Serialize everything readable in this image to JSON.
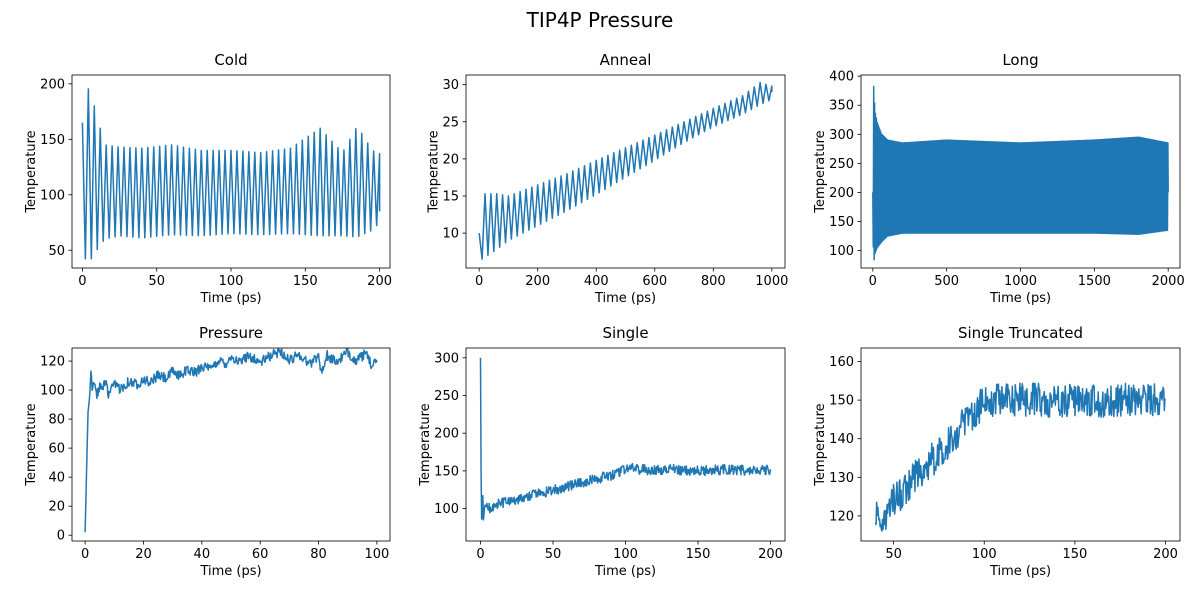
{
  "figure": {
    "suptitle": "TIP4P Pressure"
  },
  "colors": {
    "series": "#1f77b4"
  },
  "chart_data": [
    {
      "type": "line",
      "title": "Cold",
      "xlabel": "Time (ps)",
      "ylabel": "Temperature",
      "xlim": [
        -7,
        207
      ],
      "ylim": [
        34,
        208
      ],
      "xticks": [
        0,
        50,
        100,
        150,
        200
      ],
      "yticks": [
        50,
        100,
        150,
        200
      ],
      "series": [
        {
          "x_start": 0,
          "x_end": 200,
          "period": 4,
          "envelope_x": [
            0,
            3,
            5,
            8,
            15,
            25,
            40,
            60,
            80,
            100,
            120,
            140,
            160,
            175,
            185,
            195,
            200
          ],
          "envelope_upper": [
            165,
            190,
            201,
            180,
            145,
            143,
            142,
            145,
            140,
            140,
            138,
            142,
            160,
            138,
            162,
            140,
            137
          ],
          "envelope_lower": [
            45,
            41,
            40,
            47,
            60,
            63,
            61,
            64,
            63,
            65,
            64,
            65,
            63,
            63,
            62,
            68,
            75
          ],
          "center_end": 85
        }
      ]
    },
    {
      "type": "line",
      "title": "Anneal",
      "xlabel": "Time (ps)",
      "ylabel": "Temperature",
      "xlim": [
        -45,
        1045
      ],
      "ylim": [
        5.3,
        31.3
      ],
      "xticks": [
        0,
        200,
        400,
        600,
        800,
        1000
      ],
      "yticks": [
        10,
        15,
        20,
        25,
        30
      ],
      "series": [
        {
          "x_start": 0,
          "x_end": 1000,
          "period": 20,
          "envelope_x": [
            0,
            10,
            30,
            60,
            100,
            200,
            300,
            400,
            500,
            600,
            700,
            800,
            900,
            960,
            1000
          ],
          "envelope_upper": [
            10,
            15.3,
            15.3,
            15.3,
            15.0,
            16.5,
            18.0,
            19.8,
            21.5,
            23.2,
            25.0,
            26.8,
            28.5,
            30.3,
            29.8
          ],
          "envelope_lower": [
            6.5,
            6.5,
            7.0,
            7.8,
            9.0,
            11.0,
            13.0,
            15.2,
            17.5,
            19.8,
            22.2,
            24.3,
            26.0,
            27.3,
            28.0
          ],
          "center_end": 29
        }
      ]
    },
    {
      "type": "line",
      "title": "Long",
      "xlabel": "Time (ps)",
      "ylabel": "Temperature",
      "xlim": [
        -80,
        2080
      ],
      "ylim": [
        70,
        402
      ],
      "xticks": [
        0,
        500,
        1000,
        1500,
        2000
      ],
      "yticks": [
        100,
        150,
        200,
        250,
        300,
        350,
        400
      ],
      "series": [
        {
          "x_start": 0,
          "x_end": 2000,
          "period": 6,
          "envelope_x": [
            0,
            5,
            15,
            30,
            60,
            100,
            200,
            500,
            1000,
            1500,
            1800,
            2000
          ],
          "envelope_upper": [
            200,
            387,
            340,
            320,
            300,
            290,
            285,
            290,
            285,
            290,
            295,
            285
          ],
          "envelope_lower": [
            150,
            77,
            95,
            105,
            115,
            125,
            130,
            130,
            130,
            130,
            128,
            135
          ],
          "center_end": 200
        }
      ]
    },
    {
      "type": "line",
      "title": "Pressure",
      "xlabel": "Time (ps)",
      "ylabel": "Temperature",
      "xlim": [
        -4.5,
        104.5
      ],
      "ylim": [
        -4,
        129
      ],
      "xticks": [
        0,
        20,
        40,
        60,
        80,
        100
      ],
      "yticks": [
        0,
        20,
        40,
        60,
        80,
        100,
        120
      ],
      "series": [
        {
          "x_start": 0,
          "x_end": 100,
          "points": [
            [
              0,
              2
            ],
            [
              0.5,
              45
            ],
            [
              1,
              85
            ],
            [
              1.5,
              94
            ],
            [
              2,
              113
            ],
            [
              2.5,
              100
            ],
            [
              3,
              104
            ],
            [
              4,
              97
            ],
            [
              5,
              103
            ],
            [
              6,
              100
            ],
            [
              7,
              107
            ],
            [
              8,
              96
            ],
            [
              10,
              104
            ],
            [
              12,
              101
            ],
            [
              15,
              106
            ],
            [
              18,
              104
            ],
            [
              20,
              108
            ],
            [
              22,
              105
            ],
            [
              25,
              110
            ],
            [
              28,
              108
            ],
            [
              30,
              113
            ],
            [
              32,
              110
            ],
            [
              35,
              114
            ],
            [
              38,
              112
            ],
            [
              40,
              117
            ],
            [
              43,
              114
            ],
            [
              46,
              121
            ],
            [
              48,
              118
            ],
            [
              50,
              123
            ],
            [
              53,
              119
            ],
            [
              56,
              124
            ],
            [
              60,
              119
            ],
            [
              63,
              123
            ],
            [
              67,
              127
            ],
            [
              70,
              120
            ],
            [
              73,
              125
            ],
            [
              77,
              118
            ],
            [
              80,
              124
            ],
            [
              81,
              112
            ],
            [
              83,
              124
            ],
            [
              86,
              119
            ],
            [
              90,
              126
            ],
            [
              93,
              120
            ],
            [
              96,
              125
            ],
            [
              98,
              118
            ],
            [
              100,
              121
            ]
          ],
          "noise": 2
        }
      ]
    },
    {
      "type": "line",
      "title": "Single",
      "xlabel": "Time (ps)",
      "ylabel": "Temperature",
      "xlim": [
        -10,
        210
      ],
      "ylim": [
        57,
        313
      ],
      "xticks": [
        0,
        50,
        100,
        150,
        200
      ],
      "yticks": [
        100,
        150,
        200,
        250,
        300
      ],
      "series": [
        {
          "x_start": 0,
          "x_end": 200,
          "points": [
            [
              0,
              300
            ],
            [
              0.5,
              110
            ],
            [
              1,
              70
            ],
            [
              1.5,
              125
            ],
            [
              2,
              85
            ],
            [
              3,
              105
            ],
            [
              5,
              100
            ],
            [
              10,
              104
            ],
            [
              20,
              110
            ],
            [
              30,
              115
            ],
            [
              40,
              120
            ],
            [
              50,
              124
            ],
            [
              60,
              130
            ],
            [
              70,
              135
            ],
            [
              80,
              140
            ],
            [
              90,
              143
            ],
            [
              95,
              147
            ],
            [
              100,
              152
            ],
            [
              105,
              155
            ],
            [
              110,
              152
            ],
            [
              120,
              151
            ],
            [
              130,
              152
            ],
            [
              140,
              151
            ],
            [
              150,
              150
            ],
            [
              160,
              151
            ],
            [
              170,
              152
            ],
            [
              180,
              151
            ],
            [
              190,
              150
            ],
            [
              200,
              152
            ]
          ],
          "noise": 4
        }
      ]
    },
    {
      "type": "line",
      "title": "Single Truncated",
      "xlabel": "Time (ps)",
      "ylabel": "Temperature",
      "xlim": [
        32,
        208
      ],
      "ylim": [
        113.5,
        163.5
      ],
      "xticks": [
        50,
        100,
        150,
        200
      ],
      "yticks": [
        120,
        130,
        140,
        150,
        160
      ],
      "series": [
        {
          "x_start": 40,
          "x_end": 200,
          "points": [
            [
              40,
              121
            ],
            [
              45,
              118
            ],
            [
              50,
              124
            ],
            [
              55,
              126
            ],
            [
              60,
              129
            ],
            [
              65,
              132
            ],
            [
              70,
              134
            ],
            [
              75,
              136
            ],
            [
              80,
              139
            ],
            [
              85,
              142
            ],
            [
              90,
              144
            ],
            [
              95,
              147
            ],
            [
              100,
              150
            ],
            [
              105,
              150
            ],
            [
              110,
              151
            ],
            [
              120,
              150
            ],
            [
              130,
              150
            ],
            [
              140,
              150
            ],
            [
              150,
              150
            ],
            [
              160,
              150
            ],
            [
              170,
              150
            ],
            [
              180,
              150
            ],
            [
              190,
              150
            ],
            [
              200,
              150
            ]
          ],
          "noise": 2.6
        }
      ]
    }
  ]
}
